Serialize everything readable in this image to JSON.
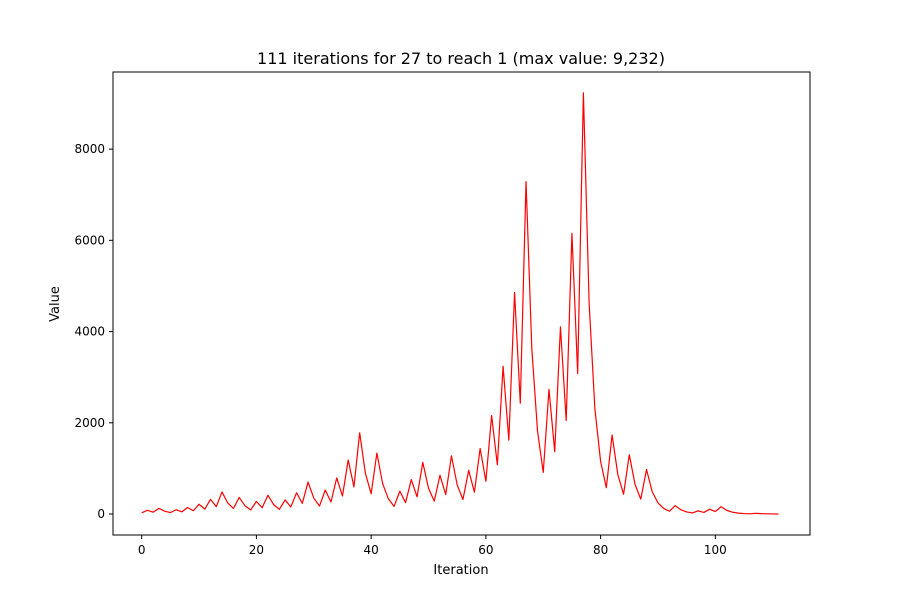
{
  "chart_data": {
    "type": "line",
    "title": "111 iterations for 27 to reach 1 (max value: 9,232)",
    "xlabel": "Iteration",
    "ylabel": "Value",
    "xlim": [
      -5,
      116.5
    ],
    "ylim": [
      -460,
      9690
    ],
    "xticks": [
      0,
      20,
      40,
      60,
      80,
      100
    ],
    "yticks": [
      0,
      2000,
      4000,
      6000,
      8000
    ],
    "grid": false,
    "line_color": "#ff0000",
    "series": [
      {
        "values": [
          27,
          82,
          41,
          124,
          62,
          31,
          94,
          47,
          142,
          71,
          214,
          107,
          322,
          161,
          484,
          242,
          121,
          364,
          182,
          91,
          274,
          137,
          412,
          206,
          103,
          310,
          155,
          466,
          233,
          700,
          350,
          175,
          526,
          263,
          790,
          395,
          1186,
          593,
          1780,
          890,
          445,
          1336,
          668,
          334,
          167,
          502,
          251,
          754,
          377,
          1132,
          566,
          283,
          850,
          425,
          1276,
          638,
          319,
          958,
          479,
          1438,
          719,
          2158,
          1079,
          3238,
          1619,
          4858,
          2429,
          7288,
          3644,
          1822,
          911,
          2734,
          1367,
          4102,
          2051,
          6154,
          3077,
          9232,
          4616,
          2308,
          1154,
          577,
          1732,
          866,
          433,
          1300,
          650,
          325,
          976,
          488,
          244,
          122,
          61,
          184,
          92,
          46,
          23,
          70,
          35,
          106,
          53,
          160,
          80,
          40,
          20,
          10,
          5,
          16,
          8,
          4,
          2,
          1
        ]
      }
    ]
  }
}
